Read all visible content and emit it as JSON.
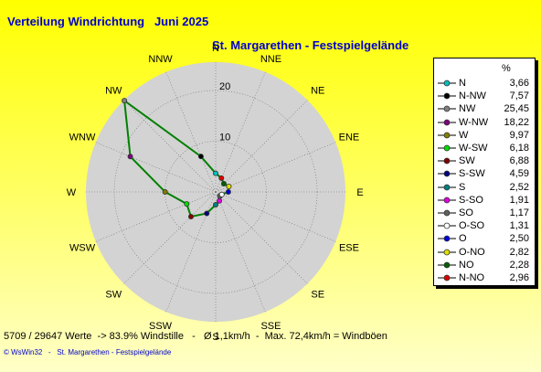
{
  "title": "Verteilung Windrichtung   Juni 2025",
  "subtitle": "St. Margarethen - Festspielgelände",
  "footer": "5709 / 29647 Werte  -> 83.9% Windstille   -   Ø 1,1km/h  -  Max. 72,4km/h = Windböen",
  "credit": "© WsWin32   -   St. Margarethen - Festspielgelände",
  "legend_unit": "%",
  "colors": {
    "plot_fill": "#d3d3d3",
    "grid": "#707070",
    "series_line": "#008000"
  },
  "chart_data": {
    "type": "radar",
    "unit": "%",
    "r_ticks": [
      10,
      20
    ],
    "grid": true,
    "legend_position": "right",
    "directions": [
      "N",
      "NNE",
      "NE",
      "ENE",
      "E",
      "ESE",
      "SE",
      "SSE",
      "S",
      "SSW",
      "SW",
      "WSW",
      "W",
      "WNW",
      "NW",
      "NNW"
    ],
    "series": [
      {
        "label": "N",
        "value": 3.66,
        "color": "#00c0c0"
      },
      {
        "label": "N-NW",
        "value": 7.57,
        "color": "#000000"
      },
      {
        "label": "NW",
        "value": 25.45,
        "color": "#808080"
      },
      {
        "label": "W-NW",
        "value": 18.22,
        "color": "#800080"
      },
      {
        "label": "W",
        "value": 9.97,
        "color": "#808000"
      },
      {
        "label": "W-SW",
        "value": 6.18,
        "color": "#00e000"
      },
      {
        "label": "SW",
        "value": 6.88,
        "color": "#800000"
      },
      {
        "label": "S-SW",
        "value": 4.59,
        "color": "#000080"
      },
      {
        "label": "S",
        "value": 2.52,
        "color": "#008080"
      },
      {
        "label": "S-SO",
        "value": 1.91,
        "color": "#e000e0"
      },
      {
        "label": "SO",
        "value": 1.17,
        "color": "#606060"
      },
      {
        "label": "O-SO",
        "value": 1.31,
        "color": "#ffffff"
      },
      {
        "label": "O",
        "value": 2.5,
        "color": "#0000e0"
      },
      {
        "label": "O-NO",
        "value": 2.82,
        "color": "#e0e000"
      },
      {
        "label": "NO",
        "value": 2.28,
        "color": "#006000"
      },
      {
        "label": "N-NO",
        "value": 2.96,
        "color": "#e00000"
      }
    ]
  }
}
